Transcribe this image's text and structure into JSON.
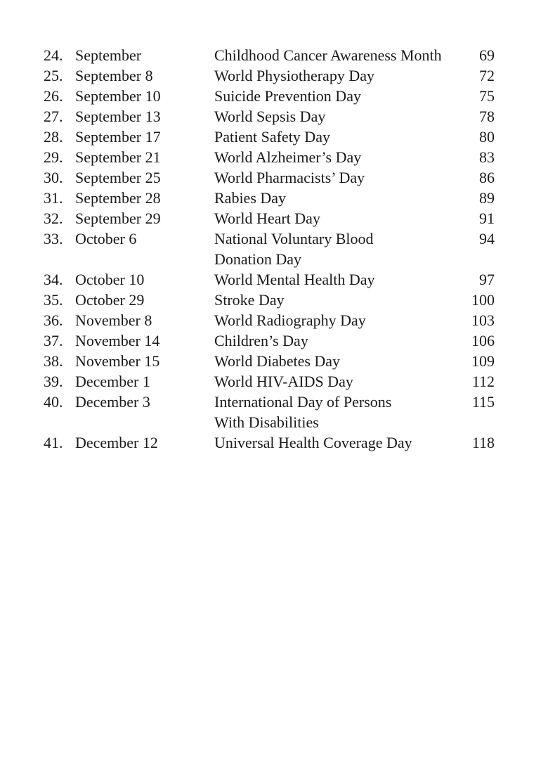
{
  "entries": [
    {
      "num": "24.",
      "date": "September",
      "title": [
        "Childhood Cancer Awareness Month"
      ],
      "page": "69"
    },
    {
      "num": "25.",
      "date": "September 8",
      "title": [
        "World Physiotherapy Day"
      ],
      "page": "72"
    },
    {
      "num": "26.",
      "date": "September 10",
      "title": [
        "Suicide Prevention Day"
      ],
      "page": "75"
    },
    {
      "num": "27.",
      "date": "September 13",
      "title": [
        "World Sepsis Day"
      ],
      "page": "78"
    },
    {
      "num": "28.",
      "date": "September 17",
      "title": [
        "Patient Safety Day"
      ],
      "page": "80"
    },
    {
      "num": "29.",
      "date": "September 21",
      "title": [
        "World Alzheimer’s Day"
      ],
      "page": "83"
    },
    {
      "num": "30.",
      "date": "September 25",
      "title": [
        "World Pharmacists’ Day"
      ],
      "page": "86"
    },
    {
      "num": "31.",
      "date": "September 28",
      "title": [
        "Rabies Day"
      ],
      "page": "89"
    },
    {
      "num": "32.",
      "date": "September 29",
      "title": [
        "World Heart Day"
      ],
      "page": "91"
    },
    {
      "num": "33.",
      "date": "October 6",
      "title": [
        "National Voluntary Blood",
        "Donation Day"
      ],
      "page": "94"
    },
    {
      "num": "34.",
      "date": "October 10",
      "title": [
        "World Mental Health Day"
      ],
      "page": "97"
    },
    {
      "num": "35.",
      "date": "October 29",
      "title": [
        "Stroke Day"
      ],
      "page": "100"
    },
    {
      "num": "36.",
      "date": "November 8",
      "title": [
        "World Radiography Day"
      ],
      "page": "103"
    },
    {
      "num": "37.",
      "date": "November 14",
      "title": [
        "Children’s Day"
      ],
      "page": "106"
    },
    {
      "num": "38.",
      "date": "November 15",
      "title": [
        "World Diabetes Day"
      ],
      "page": "109"
    },
    {
      "num": "39.",
      "date": "December 1",
      "title": [
        "World HIV-AIDS Day"
      ],
      "page": "112"
    },
    {
      "num": "40.",
      "date": "December 3",
      "title": [
        "International Day of Persons",
        "With Disabilities"
      ],
      "page": "115"
    },
    {
      "num": "41.",
      "date": "December 12",
      "title": [
        "Universal Health Coverage Day"
      ],
      "page": "118"
    }
  ]
}
